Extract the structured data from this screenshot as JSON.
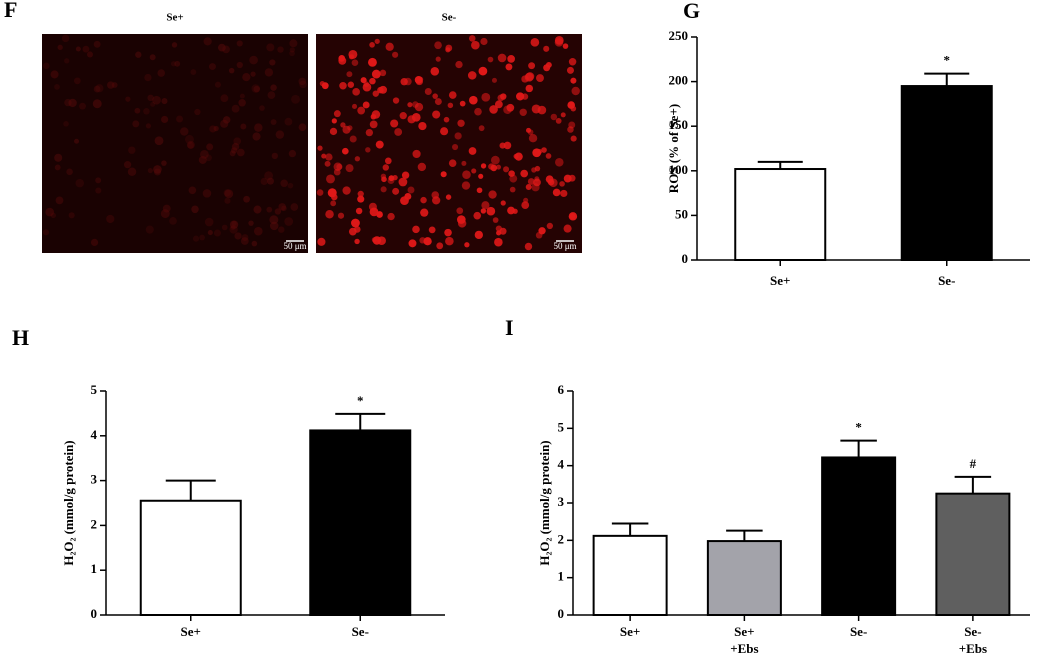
{
  "panel_f": {
    "label": "F",
    "images": [
      {
        "title": "Se+",
        "scale_bar": "50 μm"
      },
      {
        "title": "Se-",
        "scale_bar": "50 μm"
      }
    ]
  },
  "chart_data": [
    {
      "panel": "G",
      "type": "bar",
      "ylabel": "ROS (% of Se+)",
      "categories": [
        "Se+",
        "Se-"
      ],
      "values": [
        102,
        195
      ],
      "errors": [
        8,
        14
      ],
      "colors": [
        "#ffffff",
        "#000000"
      ],
      "annotations": [
        null,
        "*"
      ],
      "ylim": [
        0,
        250
      ],
      "yticks": [
        0,
        50,
        100,
        150,
        200,
        250
      ]
    },
    {
      "panel": "H",
      "type": "bar",
      "ylabel": "H₂O₂ (mmol/g protein)",
      "categories": [
        "Se+",
        "Se-"
      ],
      "values": [
        2.55,
        4.12
      ],
      "errors": [
        0.45,
        0.37
      ],
      "colors": [
        "#ffffff",
        "#000000"
      ],
      "annotations": [
        null,
        "*"
      ],
      "ylim": [
        0,
        5
      ],
      "yticks": [
        0,
        1,
        2,
        3,
        4,
        5
      ]
    },
    {
      "panel": "I",
      "type": "bar",
      "ylabel": "H₂O₂ (mmol/g protein)",
      "categories": [
        "Se+",
        "Se+\n+Ebs",
        "Se-",
        "Se-\n+Ebs"
      ],
      "values": [
        2.12,
        1.98,
        4.22,
        3.25
      ],
      "errors": [
        0.33,
        0.28,
        0.45,
        0.45
      ],
      "colors": [
        "#ffffff",
        "#a3a3aa",
        "#000000",
        "#5f5f5f"
      ],
      "annotations": [
        null,
        null,
        "*",
        "#"
      ],
      "ylim": [
        0,
        6
      ],
      "yticks": [
        0,
        1,
        2,
        3,
        4,
        5,
        6
      ]
    }
  ]
}
